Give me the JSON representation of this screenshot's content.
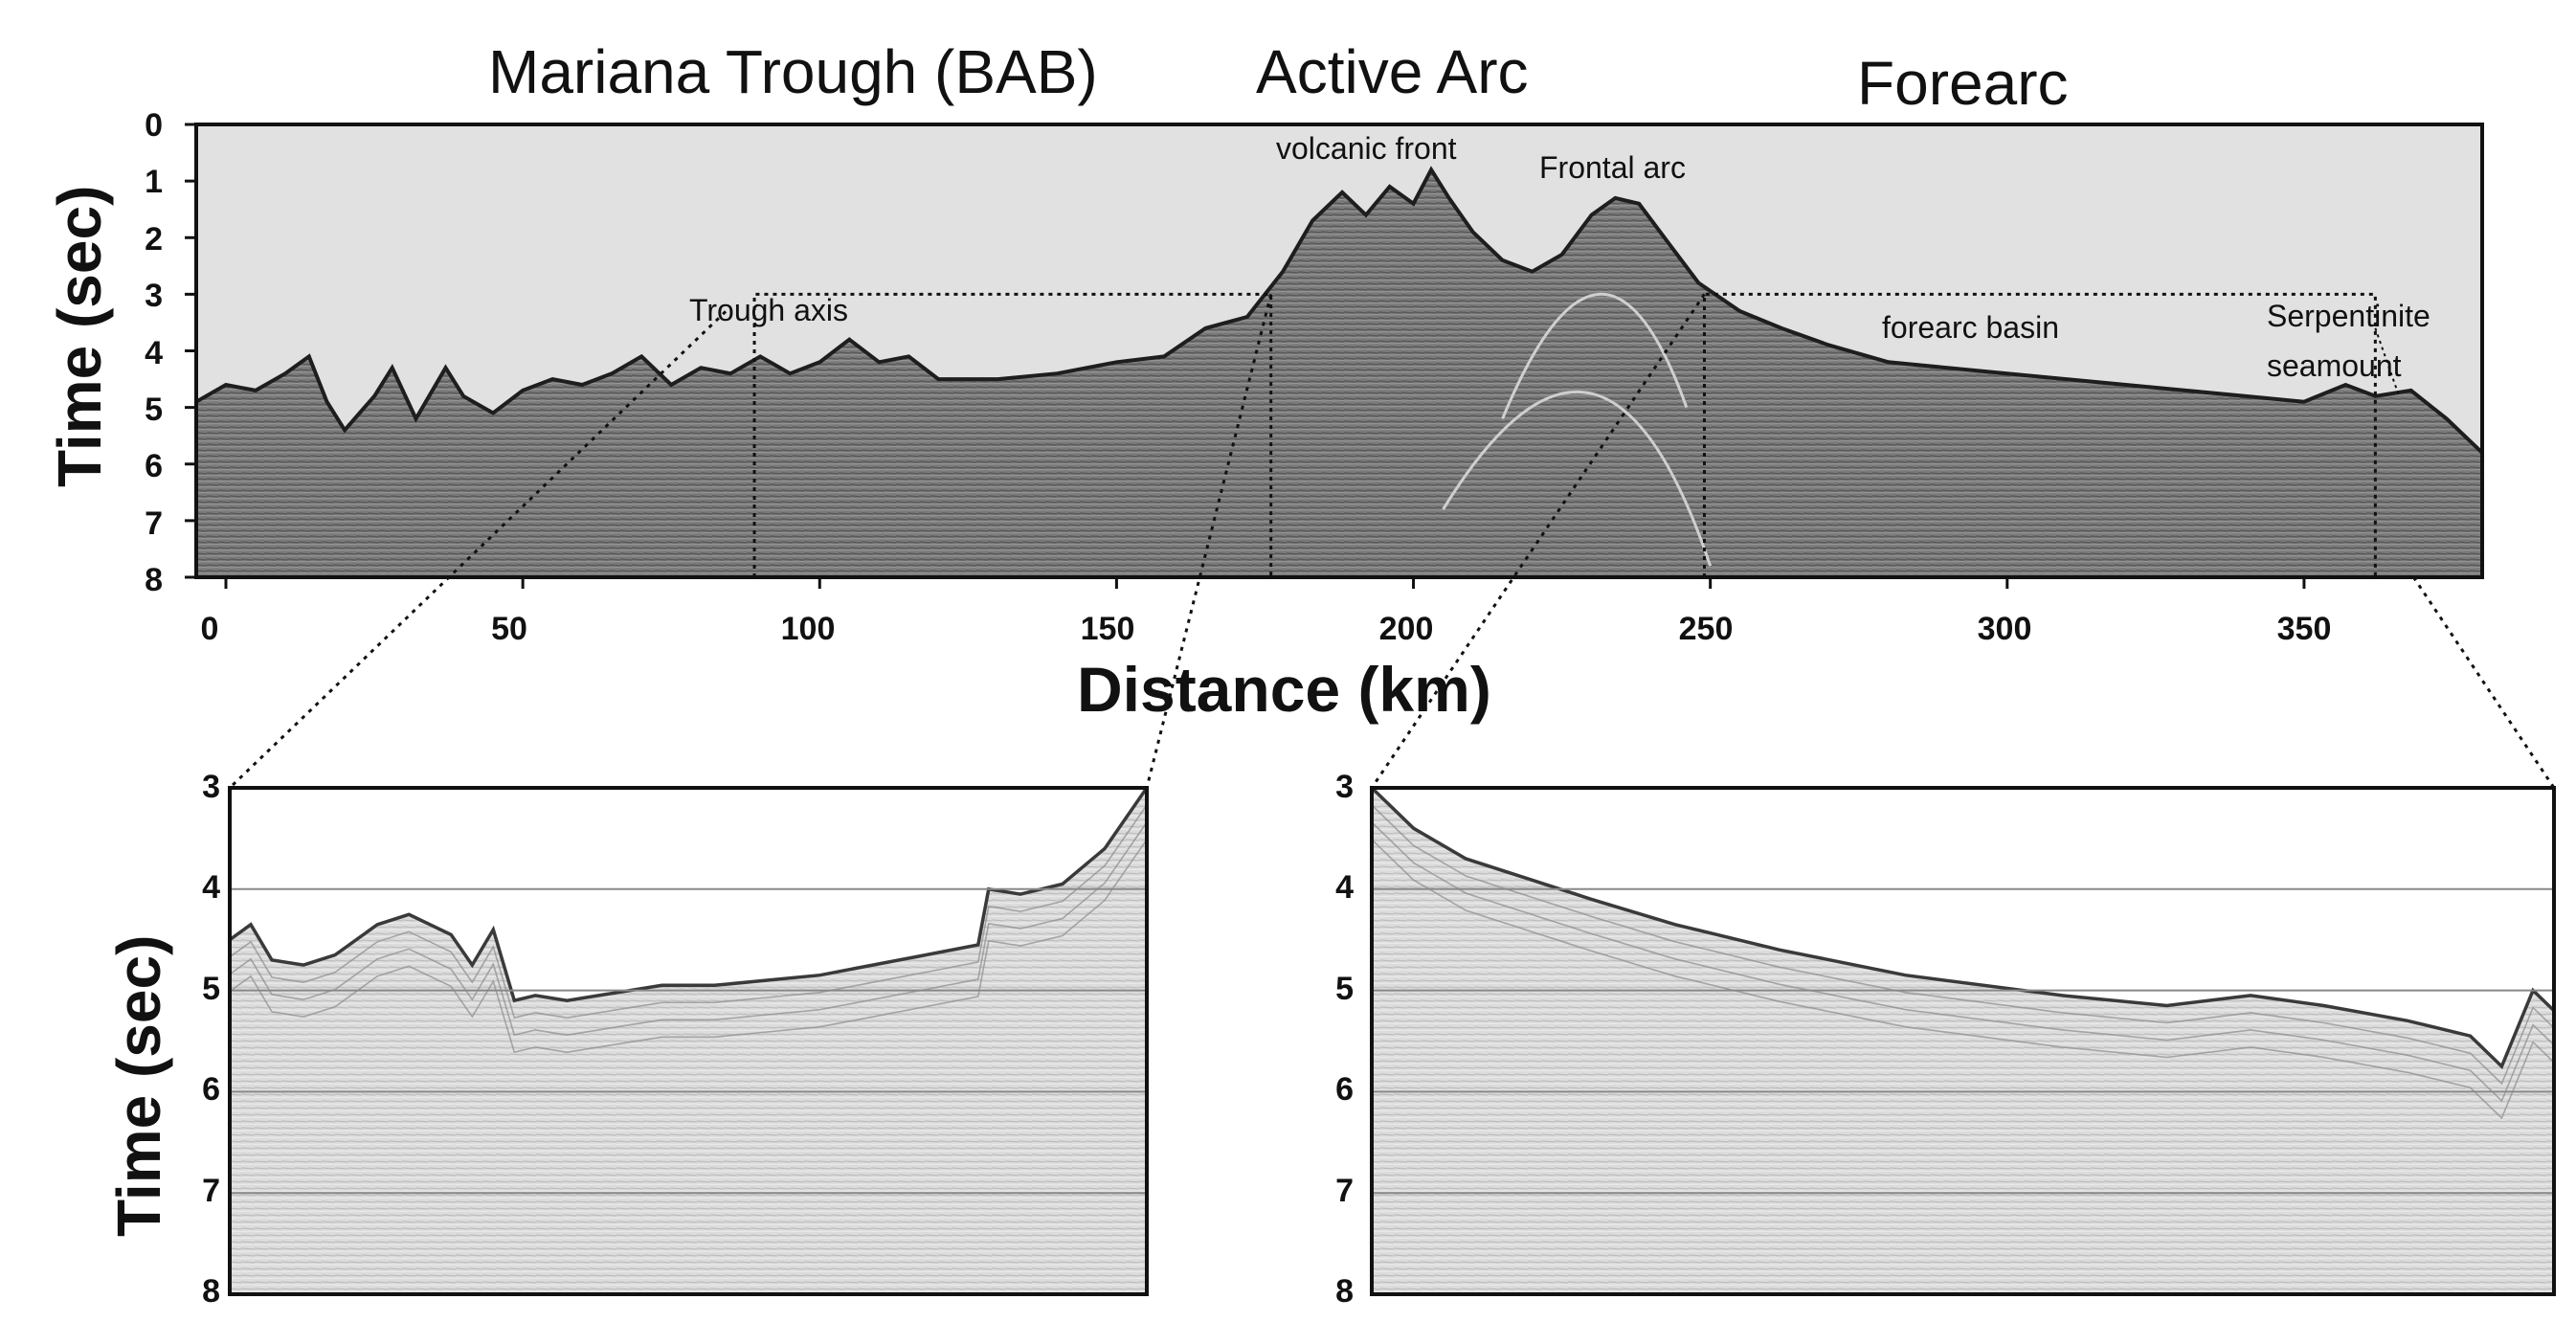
{
  "regions": {
    "back_arc": "Mariana Trough (BAB)",
    "active_arc": "Active Arc",
    "forearc": "Forearc"
  },
  "annotations": {
    "volcanic_front": "volcanic front",
    "frontal_arc": "Frontal arc",
    "trough_axis": "Trough axis",
    "forearc_basin": "forearc basin",
    "serpentinite_line1": "Serpentinite",
    "serpentinite_line2": "seamount"
  },
  "main_panel": {
    "y_axis_title": "Time (sec)",
    "x_axis_title": "Distance (km)",
    "y_ticks": [
      "0",
      "1",
      "2",
      "3",
      "4",
      "5",
      "6",
      "7",
      "8"
    ],
    "x_ticks": [
      "0",
      "50",
      "100",
      "150",
      "200",
      "250",
      "300",
      "350"
    ],
    "x_range_km": [
      -5,
      380
    ],
    "y_range_sec": [
      0,
      8
    ],
    "zoom_boxes_km": {
      "left": [
        89,
        176
      ],
      "right": [
        249,
        362
      ]
    },
    "zoom_box_time_sec": [
      3,
      8
    ],
    "seafloor_profile": [
      [
        -5,
        4.9
      ],
      [
        0,
        4.6
      ],
      [
        5,
        4.7
      ],
      [
        10,
        4.4
      ],
      [
        14,
        4.1
      ],
      [
        17,
        4.9
      ],
      [
        20,
        5.4
      ],
      [
        25,
        4.8
      ],
      [
        28,
        4.3
      ],
      [
        32,
        5.2
      ],
      [
        37,
        4.3
      ],
      [
        40,
        4.8
      ],
      [
        45,
        5.1
      ],
      [
        50,
        4.7
      ],
      [
        55,
        4.5
      ],
      [
        60,
        4.6
      ],
      [
        65,
        4.4
      ],
      [
        70,
        4.1
      ],
      [
        75,
        4.6
      ],
      [
        80,
        4.3
      ],
      [
        85,
        4.4
      ],
      [
        90,
        4.1
      ],
      [
        95,
        4.4
      ],
      [
        100,
        4.2
      ],
      [
        105,
        3.8
      ],
      [
        110,
        4.2
      ],
      [
        115,
        4.1
      ],
      [
        120,
        4.5
      ],
      [
        130,
        4.5
      ],
      [
        140,
        4.4
      ],
      [
        150,
        4.2
      ],
      [
        158,
        4.1
      ],
      [
        165,
        3.6
      ],
      [
        172,
        3.4
      ],
      [
        178,
        2.6
      ],
      [
        183,
        1.7
      ],
      [
        188,
        1.2
      ],
      [
        192,
        1.6
      ],
      [
        196,
        1.1
      ],
      [
        200,
        1.4
      ],
      [
        203,
        0.8
      ],
      [
        206,
        1.3
      ],
      [
        210,
        1.9
      ],
      [
        215,
        2.4
      ],
      [
        220,
        2.6
      ],
      [
        225,
        2.3
      ],
      [
        230,
        1.6
      ],
      [
        234,
        1.3
      ],
      [
        238,
        1.4
      ],
      [
        243,
        2.1
      ],
      [
        248,
        2.8
      ],
      [
        255,
        3.3
      ],
      [
        262,
        3.6
      ],
      [
        270,
        3.9
      ],
      [
        280,
        4.2
      ],
      [
        300,
        4.4
      ],
      [
        320,
        4.6
      ],
      [
        330,
        4.7
      ],
      [
        340,
        4.8
      ],
      [
        350,
        4.9
      ],
      [
        357,
        4.6
      ],
      [
        362,
        4.8
      ],
      [
        368,
        4.7
      ],
      [
        374,
        5.2
      ],
      [
        380,
        5.8
      ]
    ]
  },
  "zoom_left": {
    "y_axis_title": "Time (sec)",
    "y_ticks": [
      "3",
      "4",
      "5",
      "6",
      "7",
      "8"
    ],
    "x_range_km": [
      89,
      176
    ],
    "y_range_sec": [
      3,
      8
    ],
    "seafloor_profile": [
      [
        89,
        4.5
      ],
      [
        91,
        4.35
      ],
      [
        93,
        4.7
      ],
      [
        96,
        4.75
      ],
      [
        99,
        4.65
      ],
      [
        103,
        4.35
      ],
      [
        106,
        4.25
      ],
      [
        110,
        4.45
      ],
      [
        112,
        4.75
      ],
      [
        114,
        4.4
      ],
      [
        116,
        5.1
      ],
      [
        118,
        5.05
      ],
      [
        121,
        5.1
      ],
      [
        124,
        5.05
      ],
      [
        127,
        5.0
      ],
      [
        130,
        4.95
      ],
      [
        135,
        4.95
      ],
      [
        140,
        4.9
      ],
      [
        145,
        4.85
      ],
      [
        150,
        4.75
      ],
      [
        155,
        4.65
      ],
      [
        160,
        4.55
      ],
      [
        161,
        4.0
      ],
      [
        164,
        4.05
      ],
      [
        168,
        3.95
      ],
      [
        172,
        3.6
      ],
      [
        176,
        3.0
      ]
    ]
  },
  "zoom_right": {
    "y_ticks": [
      "3",
      "4",
      "5",
      "6",
      "7",
      "8"
    ],
    "x_range_km": [
      249,
      362
    ],
    "y_range_sec": [
      3,
      8
    ],
    "seafloor_profile": [
      [
        249,
        3.0
      ],
      [
        253,
        3.4
      ],
      [
        258,
        3.7
      ],
      [
        264,
        3.9
      ],
      [
        270,
        4.1
      ],
      [
        278,
        4.35
      ],
      [
        288,
        4.6
      ],
      [
        300,
        4.85
      ],
      [
        315,
        5.05
      ],
      [
        325,
        5.15
      ],
      [
        333,
        5.05
      ],
      [
        340,
        5.15
      ],
      [
        348,
        5.3
      ],
      [
        354,
        5.45
      ],
      [
        357,
        5.75
      ],
      [
        360,
        5.0
      ],
      [
        362,
        5.2
      ]
    ]
  },
  "colors": {
    "water": "#e1e1e1",
    "main_section": "#7a7a7a",
    "zoom_section": "#dcdcdc",
    "zoom_background": "#ffffff",
    "frame": "#111111",
    "gridline": "#888888"
  }
}
